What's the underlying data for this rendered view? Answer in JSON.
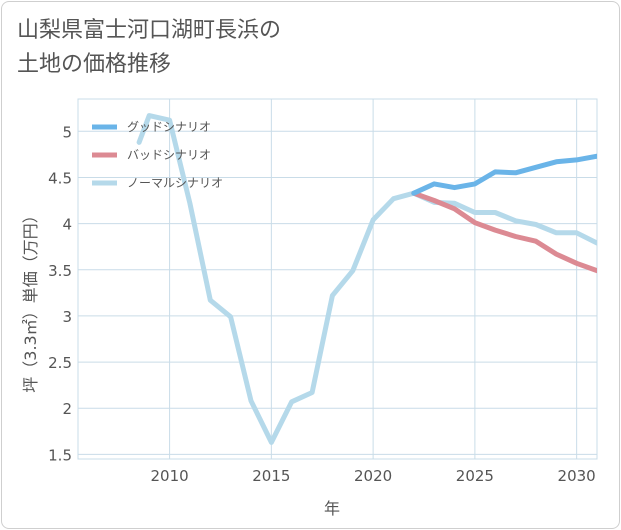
{
  "title": "山梨県富士河口湖町長浜の\n土地の価格推移",
  "chart_data": {
    "type": "line",
    "xlabel": "年",
    "ylabel": "坪（3.3㎡）単価（万円）",
    "xlim": [
      2005.5,
      2031
    ],
    "ylim": [
      1.45,
      5.35
    ],
    "x_ticks": [
      2010,
      2015,
      2020,
      2025,
      2030
    ],
    "y_ticks": [
      1.5,
      2,
      2.5,
      3,
      3.5,
      4,
      4.5,
      5
    ],
    "grid": true,
    "legend_position": "top-left",
    "series": [
      {
        "name": "グッドシナリオ",
        "color": "#6ab4e8",
        "x": [
          2022,
          2023,
          2024,
          2025,
          2026,
          2027,
          2028,
          2029,
          2030,
          2031
        ],
        "y": [
          4.33,
          4.43,
          4.39,
          4.43,
          4.56,
          4.55,
          4.61,
          4.67,
          4.69,
          4.73
        ]
      },
      {
        "name": "バッドシナリオ",
        "color": "#dc8a93",
        "x": [
          2022,
          2023,
          2024,
          2025,
          2026,
          2027,
          2028,
          2029,
          2030,
          2031
        ],
        "y": [
          4.33,
          4.25,
          4.16,
          4.01,
          3.93,
          3.86,
          3.81,
          3.67,
          3.57,
          3.49
        ]
      },
      {
        "name": "ノーマルシナリオ",
        "color": "#b5d9ea",
        "x": [
          2008.5,
          2009,
          2010,
          2011,
          2012,
          2013,
          2014,
          2015,
          2016,
          2017,
          2018,
          2019,
          2020,
          2021,
          2022,
          2023,
          2024,
          2025,
          2026,
          2027,
          2028,
          2029,
          2030,
          2031
        ],
        "y": [
          4.88,
          5.17,
          5.12,
          4.22,
          3.17,
          2.99,
          2.08,
          1.63,
          2.07,
          2.17,
          3.22,
          3.49,
          4.04,
          4.27,
          4.33,
          4.23,
          4.22,
          4.12,
          4.12,
          4.03,
          3.99,
          3.9,
          3.9,
          3.79
        ]
      }
    ]
  }
}
